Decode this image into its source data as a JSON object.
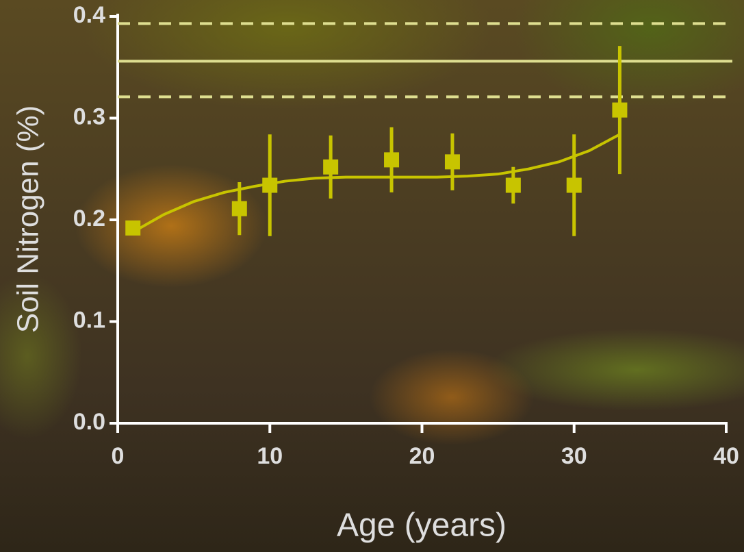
{
  "chart_data": {
    "type": "scatter",
    "x_label": "Age (years)",
    "y_label": "Soil Nitrogen (%)",
    "xlim": [
      0,
      40
    ],
    "xticks": [
      0,
      10,
      20,
      30,
      40
    ],
    "ylim": [
      0,
      0.4
    ],
    "yticks": [
      {
        "value": 0,
        "label": "0.0"
      },
      0.1,
      0.2,
      0.3,
      0.4
    ],
    "series": [
      {
        "color": "#c8c400",
        "x": [
          1,
          8,
          10,
          14,
          18,
          22,
          26,
          30,
          33
        ],
        "values": [
          0.192,
          0.211,
          0.234,
          0.252,
          0.259,
          0.257,
          0.234,
          0.234,
          0.308
        ],
        "errors": [
          null,
          0.026,
          0.05,
          0.031,
          0.032,
          0.028,
          0.018,
          0.05,
          0.063
        ]
      }
    ],
    "fit": {
      "color": "#c8c400",
      "x": [
        1,
        3,
        5,
        7,
        9,
        11,
        13,
        15,
        17,
        19,
        21,
        23,
        25,
        27,
        29,
        31,
        33
      ],
      "values": [
        0.188,
        0.205,
        0.218,
        0.227,
        0.233,
        0.238,
        0.241,
        0.242,
        0.242,
        0.242,
        0.242,
        0.243,
        0.245,
        0.25,
        0.257,
        0.268,
        0.284
      ]
    },
    "hlines": [
      {
        "value": 0.393,
        "dashed": true
      },
      {
        "value": 0.356,
        "dashed": false
      },
      {
        "value": 0.321,
        "dashed": true
      }
    ],
    "hline_color": "#dede90"
  }
}
